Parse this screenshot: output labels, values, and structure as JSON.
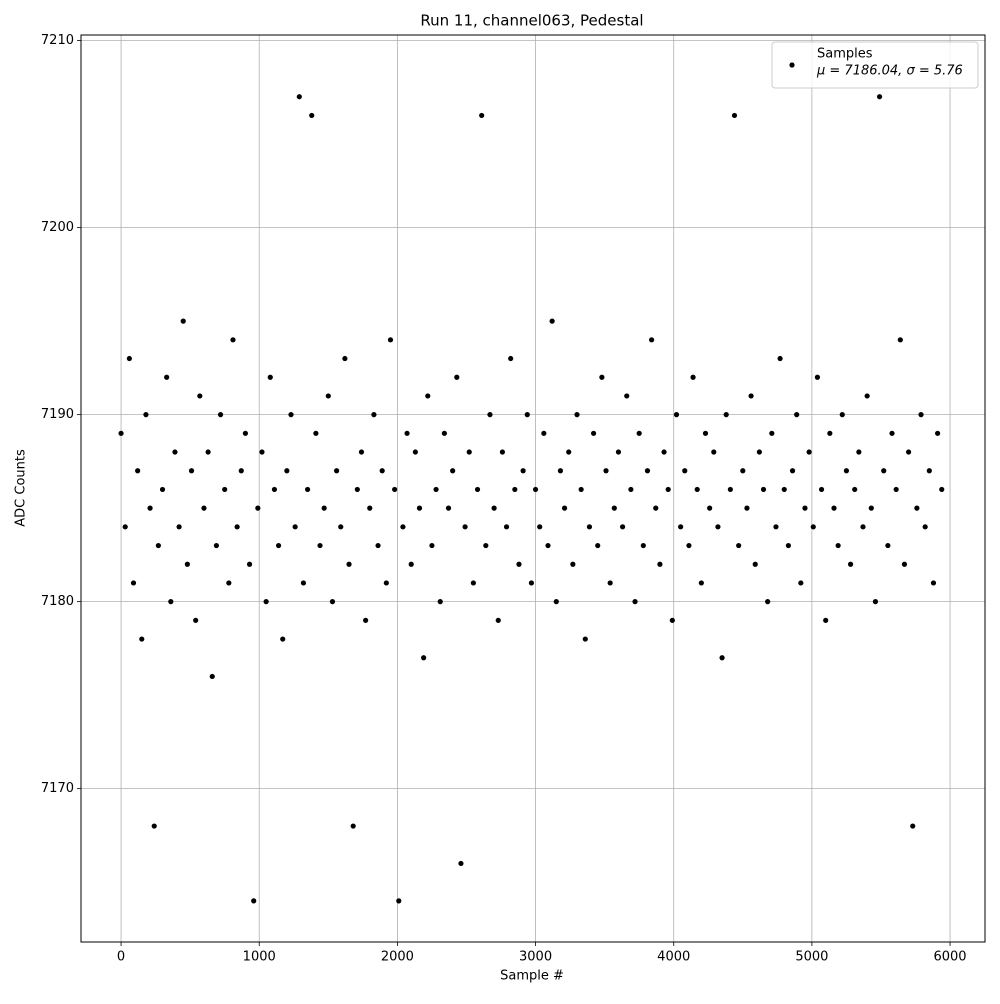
{
  "chart_data": {
    "type": "scatter",
    "title": "Run 11, channel063, Pedestal",
    "xlabel": "Sample #",
    "ylabel": "ADC Counts",
    "xlim": [
      -290,
      6253
    ],
    "ylim": [
      7161.8,
      7210.3
    ],
    "xticks": [
      0,
      1000,
      2000,
      3000,
      4000,
      5000,
      6000
    ],
    "yticks": [
      7170,
      7180,
      7190,
      7200,
      7210
    ],
    "grid": true,
    "legend": "upper right",
    "stats_label": "μ = 7186.04, σ = 5.76",
    "series": [
      {
        "name": "Samples",
        "color": "#000000",
        "x": [
          0,
          30,
          60,
          90,
          120,
          150,
          180,
          210,
          240,
          270,
          300,
          330,
          360,
          390,
          420,
          450,
          480,
          510,
          540,
          570,
          600,
          630,
          660,
          690,
          720,
          750,
          780,
          810,
          840,
          870,
          900,
          930,
          960,
          990,
          1020,
          1050,
          1080,
          1110,
          1140,
          1170,
          1200,
          1230,
          1260,
          1290,
          1320,
          1350,
          1380,
          1410,
          1440,
          1470,
          1500,
          1530,
          1560,
          1590,
          1620,
          1650,
          1680,
          1710,
          1740,
          1770,
          1800,
          1830,
          1860,
          1890,
          1920,
          1950,
          1980,
          2010,
          2040,
          2070,
          2100,
          2130,
          2160,
          2190,
          2220,
          2250,
          2280,
          2310,
          2340,
          2370,
          2400,
          2430,
          2460,
          2490,
          2520,
          2550,
          2580,
          2610,
          2640,
          2670,
          2700,
          2730,
          2760,
          2790,
          2820,
          2850,
          2880,
          2910,
          2940,
          2970,
          3000,
          3030,
          3060,
          3090,
          3120,
          3150,
          3180,
          3210,
          3240,
          3270,
          3300,
          3330,
          3360,
          3390,
          3420,
          3450,
          3480,
          3510,
          3540,
          3570,
          3600,
          3630,
          3660,
          3690,
          3720,
          3750,
          3780,
          3810,
          3840,
          3870,
          3900,
          3930,
          3960,
          3990,
          4020,
          4050,
          4080,
          4110,
          4140,
          4170,
          4200,
          4230,
          4260,
          4290,
          4320,
          4350,
          4380,
          4410,
          4440,
          4470,
          4500,
          4530,
          4560,
          4590,
          4620,
          4650,
          4680,
          4710,
          4740,
          4770,
          4800,
          4830,
          4860,
          4890,
          4920,
          4950,
          4980,
          5010,
          5040,
          5070,
          5100,
          5130,
          5160,
          5190,
          5220,
          5250,
          5280,
          5310,
          5340,
          5370,
          5400,
          5430,
          5460,
          5490,
          5520,
          5550,
          5580,
          5610,
          5640,
          5670,
          5700,
          5730,
          5760,
          5790,
          5820,
          5850,
          5880,
          5910,
          5940
        ],
        "values": [
          7189,
          7184,
          7193,
          7181,
          7187,
          7178,
          7190,
          7185,
          7168,
          7183,
          7186,
          7192,
          7180,
          7188,
          7184,
          7195,
          7182,
          7187,
          7179,
          7191,
          7185,
          7188,
          7176,
          7183,
          7190,
          7186,
          7181,
          7194,
          7184,
          7187,
          7189,
          7182,
          7164,
          7185,
          7188,
          7180,
          7192,
          7186,
          7183,
          7178,
          7187,
          7190,
          7184,
          7207,
          7181,
          7186,
          7206,
          7189,
          7183,
          7185,
          7191,
          7180,
          7187,
          7184,
          7193,
          7182,
          7168,
          7186,
          7188,
          7179,
          7185,
          7190,
          7183,
          7187,
          7181,
          7194,
          7186,
          7164,
          7184,
          7189,
          7182,
          7188,
          7185,
          7177,
          7191,
          7183,
          7186,
          7180,
          7189,
          7185,
          7187,
          7192,
          7166,
          7184,
          7188,
          7181,
          7186,
          7206,
          7183,
          7190,
          7185,
          7179,
          7188,
          7184,
          7193,
          7186,
          7182,
          7187,
          7190,
          7181,
          7186,
          7184,
          7189,
          7183,
          7195,
          7180,
          7187,
          7185,
          7188,
          7182,
          7190,
          7186,
          7178,
          7184,
          7189,
          7183,
          7192,
          7187,
          7181,
          7185,
          7188,
          7184,
          7191,
          7186,
          7180,
          7189,
          7183,
          7187,
          7194,
          7185,
          7182,
          7188,
          7186,
          7179,
          7190,
          7184,
          7187,
          7183,
          7192,
          7186,
          7181,
          7189,
          7185,
          7188,
          7184,
          7177,
          7190,
          7186,
          7206,
          7183,
          7187,
          7185,
          7191,
          7182,
          7188,
          7186,
          7180,
          7189,
          7184,
          7193,
          7186,
          7183,
          7187,
          7190,
          7181,
          7185,
          7188,
          7184,
          7192,
          7186,
          7179,
          7189,
          7185,
          7183,
          7190,
          7187,
          7182,
          7186,
          7188,
          7184,
          7191,
          7185,
          7180,
          7207,
          7187,
          7183,
          7189,
          7186,
          7194,
          7182,
          7188,
          7168,
          7185,
          7190,
          7184,
          7187,
          7181,
          7189,
          7186
        ]
      }
    ]
  }
}
